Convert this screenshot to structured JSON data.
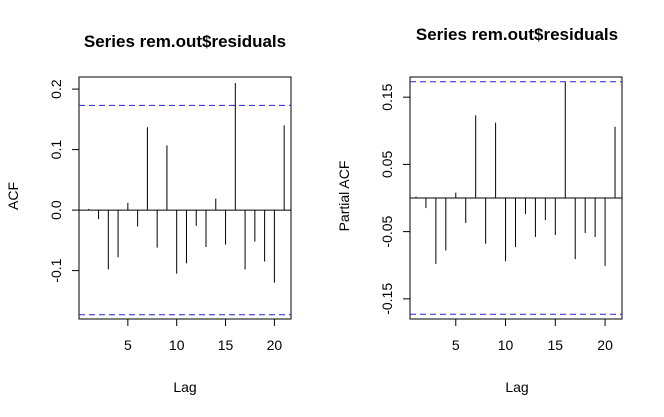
{
  "chart_data": [
    {
      "type": "bar",
      "title": "Series rem.out$residuals",
      "xlabel": "Lag",
      "ylabel": "ACF",
      "xlim": [
        0,
        21.7
      ],
      "ylim": [
        -0.18,
        0.22
      ],
      "x_ticks": [
        5,
        10,
        15,
        20
      ],
      "y_ticks": [
        -0.1,
        0.0,
        0.1,
        0.2
      ],
      "y_tick_labels": [
        "-0.1",
        "0.0",
        "0.1",
        "0.2"
      ],
      "conf_limit": 0.173,
      "conf_color": "#2222dd",
      "bar_color": "#000000",
      "lags": [
        1,
        2,
        3,
        4,
        5,
        6,
        7,
        8,
        9,
        10,
        11,
        12,
        13,
        14,
        15,
        16,
        17,
        18,
        19,
        20,
        21
      ],
      "values": [
        0.002,
        -0.015,
        -0.098,
        -0.078,
        0.012,
        -0.027,
        0.137,
        -0.062,
        0.107,
        -0.105,
        -0.088,
        -0.026,
        -0.061,
        0.019,
        -0.057,
        0.21,
        -0.098,
        -0.052,
        -0.085,
        -0.12,
        0.14
      ]
    },
    {
      "type": "bar",
      "title": "Series  rem.out$residuals",
      "xlabel": "Lag",
      "ylabel": "Partial ACF",
      "xlim": [
        0.4,
        21.7
      ],
      "ylim": [
        -0.18,
        0.18
      ],
      "x_ticks": [
        5,
        10,
        15,
        20
      ],
      "y_ticks": [
        -0.15,
        -0.05,
        0.05,
        0.15
      ],
      "y_tick_labels": [
        "-0.15",
        "-0.05",
        "0.05",
        "0.15"
      ],
      "conf_limit": 0.173,
      "conf_color": "#2222dd",
      "bar_color": "#000000",
      "lags": [
        1,
        2,
        3,
        4,
        5,
        6,
        7,
        8,
        9,
        10,
        11,
        12,
        13,
        14,
        15,
        16,
        17,
        18,
        19,
        20,
        21
      ],
      "values": [
        0.002,
        -0.015,
        -0.098,
        -0.078,
        0.008,
        -0.037,
        0.123,
        -0.068,
        0.112,
        -0.094,
        -0.073,
        -0.024,
        -0.058,
        -0.033,
        -0.055,
        0.172,
        -0.091,
        -0.052,
        -0.058,
        -0.101,
        0.106
      ]
    }
  ]
}
